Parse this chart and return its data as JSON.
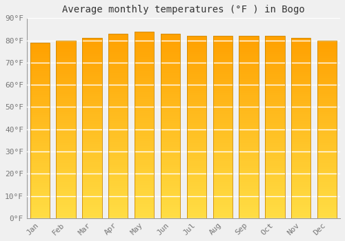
{
  "title": "Average monthly temperatures (°F ) in Bogo",
  "months": [
    "Jan",
    "Feb",
    "Mar",
    "Apr",
    "May",
    "Jun",
    "Jul",
    "Aug",
    "Sep",
    "Oct",
    "Nov",
    "Dec"
  ],
  "values": [
    79,
    80,
    81,
    83,
    84,
    83,
    82,
    82,
    82,
    82,
    81,
    80
  ],
  "ylim": [
    0,
    90
  ],
  "yticks": [
    0,
    10,
    20,
    30,
    40,
    50,
    60,
    70,
    80,
    90
  ],
  "ytick_labels": [
    "0°F",
    "10°F",
    "20°F",
    "30°F",
    "40°F",
    "50°F",
    "60°F",
    "70°F",
    "80°F",
    "90°F"
  ],
  "bar_color_top": "#FFA500",
  "bar_color_bottom": "#FFDD44",
  "bar_edge_color": "#CC8800",
  "background_color": "#F0F0F0",
  "grid_color": "#FFFFFF",
  "title_fontsize": 10,
  "tick_fontsize": 8,
  "font_family": "monospace"
}
